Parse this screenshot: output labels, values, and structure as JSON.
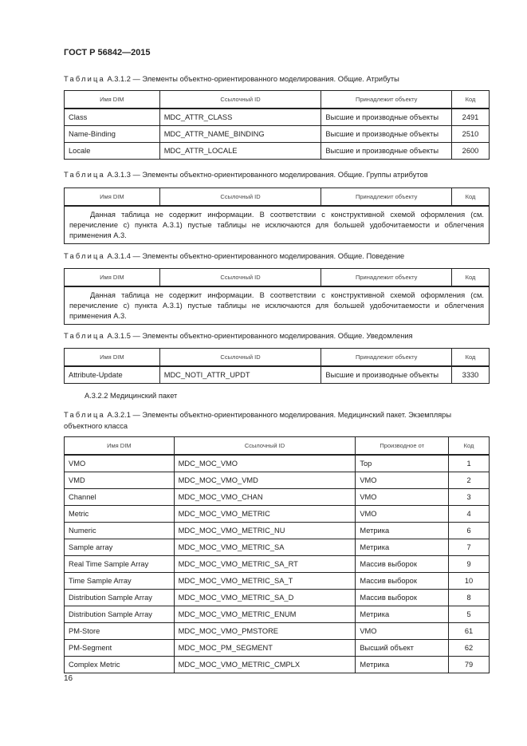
{
  "header": "ГОСТ Р 56842—2015",
  "tables": [
    {
      "label": "Таблица",
      "caption": "А.3.1.2 — Элементы объектно-ориентированного моделирования. Общие. Атрибуты",
      "columns": [
        "Имя DIM",
        "Ссылочный ID",
        "Принадлежит объекту",
        "Код"
      ],
      "rows": [
        [
          "Class",
          "MDC_ATTR_CLASS",
          "Высшие и производные объекты",
          "2491"
        ],
        [
          "Name-Binding",
          "MDC_ATTR_NAME_BINDING",
          "Высшие и производные объекты",
          "2510"
        ],
        [
          "Locale",
          "MDC_ATTR_LOCALE",
          "Высшие и производные объекты",
          "2600"
        ]
      ]
    },
    {
      "label": "Таблица",
      "caption": "А.3.1.3 — Элементы объектно-ориентированного моделирования. Общие. Группы атрибутов",
      "columns": [
        "Имя DIM",
        "Ссылочный ID",
        "Принадлежит объекту",
        "Код"
      ],
      "note": "Данная таблица не содержит информации. В соответствии с конструктивной схемой оформления (см. перечисление с) пункта А.3.1) пустые таблицы не исключаются для большей удобочитаемости и облегчения применения А.3."
    },
    {
      "label": "Таблица",
      "caption": "А.3.1.4 — Элементы объектно-ориентированного моделирования. Общие. Поведение",
      "columns": [
        "Имя DIM",
        "Ссылочный ID",
        "Принадлежит объекту",
        "Код"
      ],
      "note": "Данная таблица не содержит информации. В соответствии с конструктивной схемой оформления (см. перечисление с) пункта А.3.1) пустые таблицы не исключаются для большей удобочитаемости и облегчения применения А.3."
    },
    {
      "label": "Таблица",
      "caption": "А.3.1.5 — Элементы объектно-ориентированного моделирования. Общие. Уведомления",
      "columns": [
        "Имя DIM",
        "Ссылочный ID",
        "Принадлежит объекту",
        "Код"
      ],
      "rows": [
        [
          "Attribute-Update",
          "MDC_NOTI_ATTR_UPDT",
          "Высшие и производные объекты",
          "3330"
        ]
      ]
    },
    {
      "label": "Таблица",
      "caption": "А.3.2.1 — Элементы объектно-ориентированного моделирования. Медицинский пакет. Экземпляры объектного класса",
      "columns": [
        "Имя DIM",
        "Ссылочный ID",
        "Производное от",
        "Код"
      ],
      "rows": [
        [
          "VMO",
          "MDC_MOC_VMO",
          "Top",
          "1"
        ],
        [
          "VMD",
          "MDC_MOC_VMO_VMD",
          "VMO",
          "2"
        ],
        [
          "Channel",
          "MDC_MOC_VMO_CHAN",
          "VMO",
          "3"
        ],
        [
          "Metric",
          "MDC_MOC_VMO_METRIC",
          "VMO",
          "4"
        ],
        [
          "Numeric",
          "MDC_MOC_VMO_METRIC_NU",
          "Метрика",
          "6"
        ],
        [
          "Sample array",
          "MDC_MOC_VMO_METRIC_SA",
          "Метрика",
          "7"
        ],
        [
          "Real Time Sample Array",
          "MDC_MOC_VMO_METRIC_SA_RT",
          "Массив выборок",
          "9"
        ],
        [
          "Time Sample Array",
          "MDC_MOC_VMO_METRIC_SA_T",
          "Массив выборок",
          "10"
        ],
        [
          "Distribution Sample Array",
          "MDC_MOC_VMO_METRIC_SA_D",
          "Массив выборок",
          "8"
        ],
        [
          "Distribution Sample Array",
          "MDC_MOC_VMO_METRIC_ENUM",
          "Метрика",
          "5"
        ],
        [
          "PM-Store",
          "MDC_MOC_VMO_PMSTORE",
          "VMO",
          "61"
        ],
        [
          "PM-Segment",
          "MDC_MOC_PM_SEGMENT",
          "Высший объект",
          "62"
        ],
        [
          "Complex Metric",
          "MDC_MOC_VMO_METRIC_CMPLX",
          "Метрика",
          "79"
        ]
      ]
    }
  ],
  "subsection": "А.3.2.2  Медицинский пакет",
  "page_number": "16"
}
